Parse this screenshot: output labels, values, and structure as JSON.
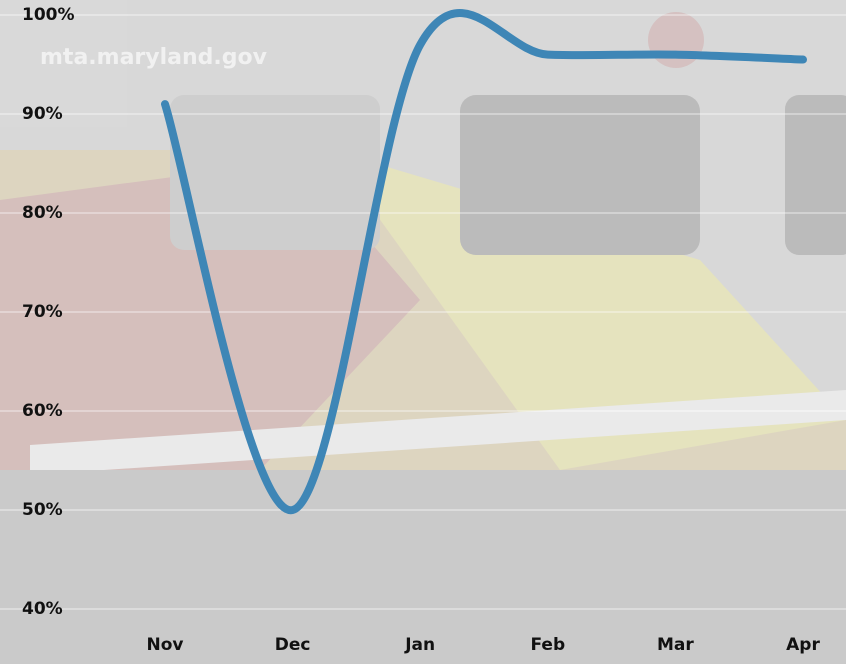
{
  "chart_data": {
    "type": "line",
    "annotations": [
      "mta.maryland.gov"
    ],
    "categories": [
      "Nov",
      "Dec",
      "Jan",
      "Feb",
      "Mar",
      "Apr"
    ],
    "series": [
      {
        "color": "#3e86b6",
        "values": [
          91,
          50,
          97,
          96,
          96,
          95.5
        ]
      }
    ],
    "ylim": [
      40,
      100
    ],
    "yticks": [
      {
        "value": 40,
        "label": "40%"
      },
      {
        "value": 50,
        "label": "50%"
      },
      {
        "value": 60,
        "label": "60%"
      },
      {
        "value": 70,
        "label": "70%"
      },
      {
        "value": 80,
        "label": "80%"
      },
      {
        "value": 90,
        "label": "90%"
      },
      {
        "value": 100,
        "label": "100%"
      }
    ],
    "grid": true
  }
}
